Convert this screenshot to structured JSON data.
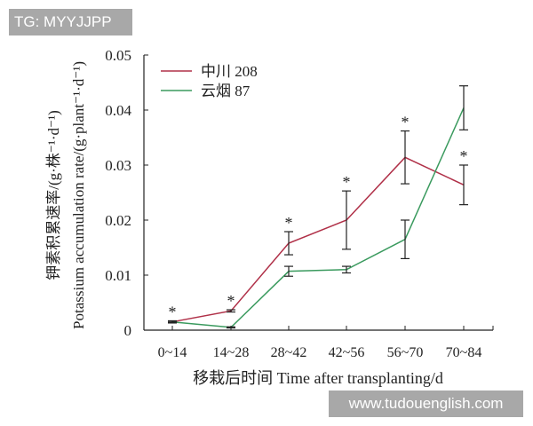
{
  "watermark_top": "TG: MYYJJPP",
  "watermark_bottom": "www.tudouenglish.com",
  "chart_data": {
    "type": "line",
    "title": "",
    "xlabel": "移栽后时间 Time after transplanting/d",
    "ylabel_cn": "钾素积累速率/(g·株⁻¹·d⁻¹)",
    "ylabel_en": "Potassium accumulation rate/(g·plant⁻¹·d⁻¹)",
    "categories": [
      "0~14",
      "14~28",
      "28~42",
      "42~56",
      "56~70",
      "70~84"
    ],
    "ylim": [
      0,
      0.05
    ],
    "yticks": [
      "0",
      "0.01",
      "0.02",
      "0.03",
      "0.04",
      "0.05"
    ],
    "grid": false,
    "legend_position": "top-left",
    "series": [
      {
        "name": "中川 208",
        "color": "#b03048",
        "values": [
          0.0015,
          0.0035,
          0.0158,
          0.02,
          0.0314,
          0.0264
        ],
        "errors": [
          0.0002,
          0.0002,
          0.0021,
          0.0053,
          0.0048,
          0.0036
        ]
      },
      {
        "name": "云烟 87",
        "color": "#3a9a5e",
        "values": [
          0.0015,
          0.0005,
          0.0107,
          0.011,
          0.0165,
          0.0404
        ],
        "errors": [
          0.0001,
          0.0001,
          0.0009,
          0.0006,
          0.0035,
          0.004
        ]
      }
    ],
    "significance_marks": [
      "*",
      "*",
      "*",
      "*",
      "*",
      "*"
    ]
  }
}
